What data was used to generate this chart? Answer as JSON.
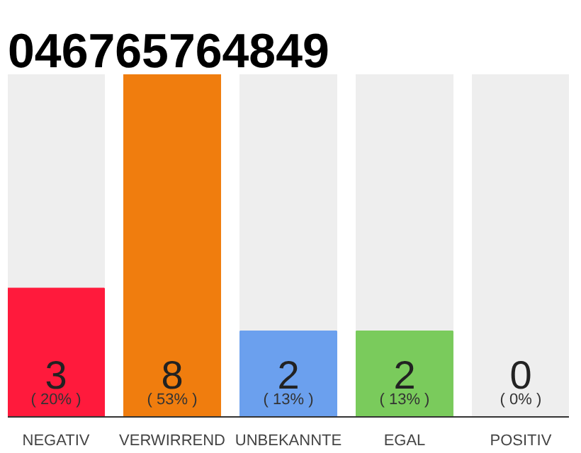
{
  "chart_data": {
    "type": "bar",
    "title": "046765764849",
    "categories": [
      "NEGATIV",
      "VERWIRREND",
      "UNBEKANNTE",
      "EGAL",
      "POSITIV"
    ],
    "values": [
      3,
      8,
      2,
      2,
      0
    ],
    "colors": [
      "#ff1a3c",
      "#f07d0e",
      "#6ba0ee",
      "#7acb5c",
      "#c8c8c8"
    ],
    "data_labels": true,
    "annotations": [
      "( 20% )",
      "( 53% )",
      "( 13% )",
      "( 13% )",
      "( 0% )"
    ]
  }
}
